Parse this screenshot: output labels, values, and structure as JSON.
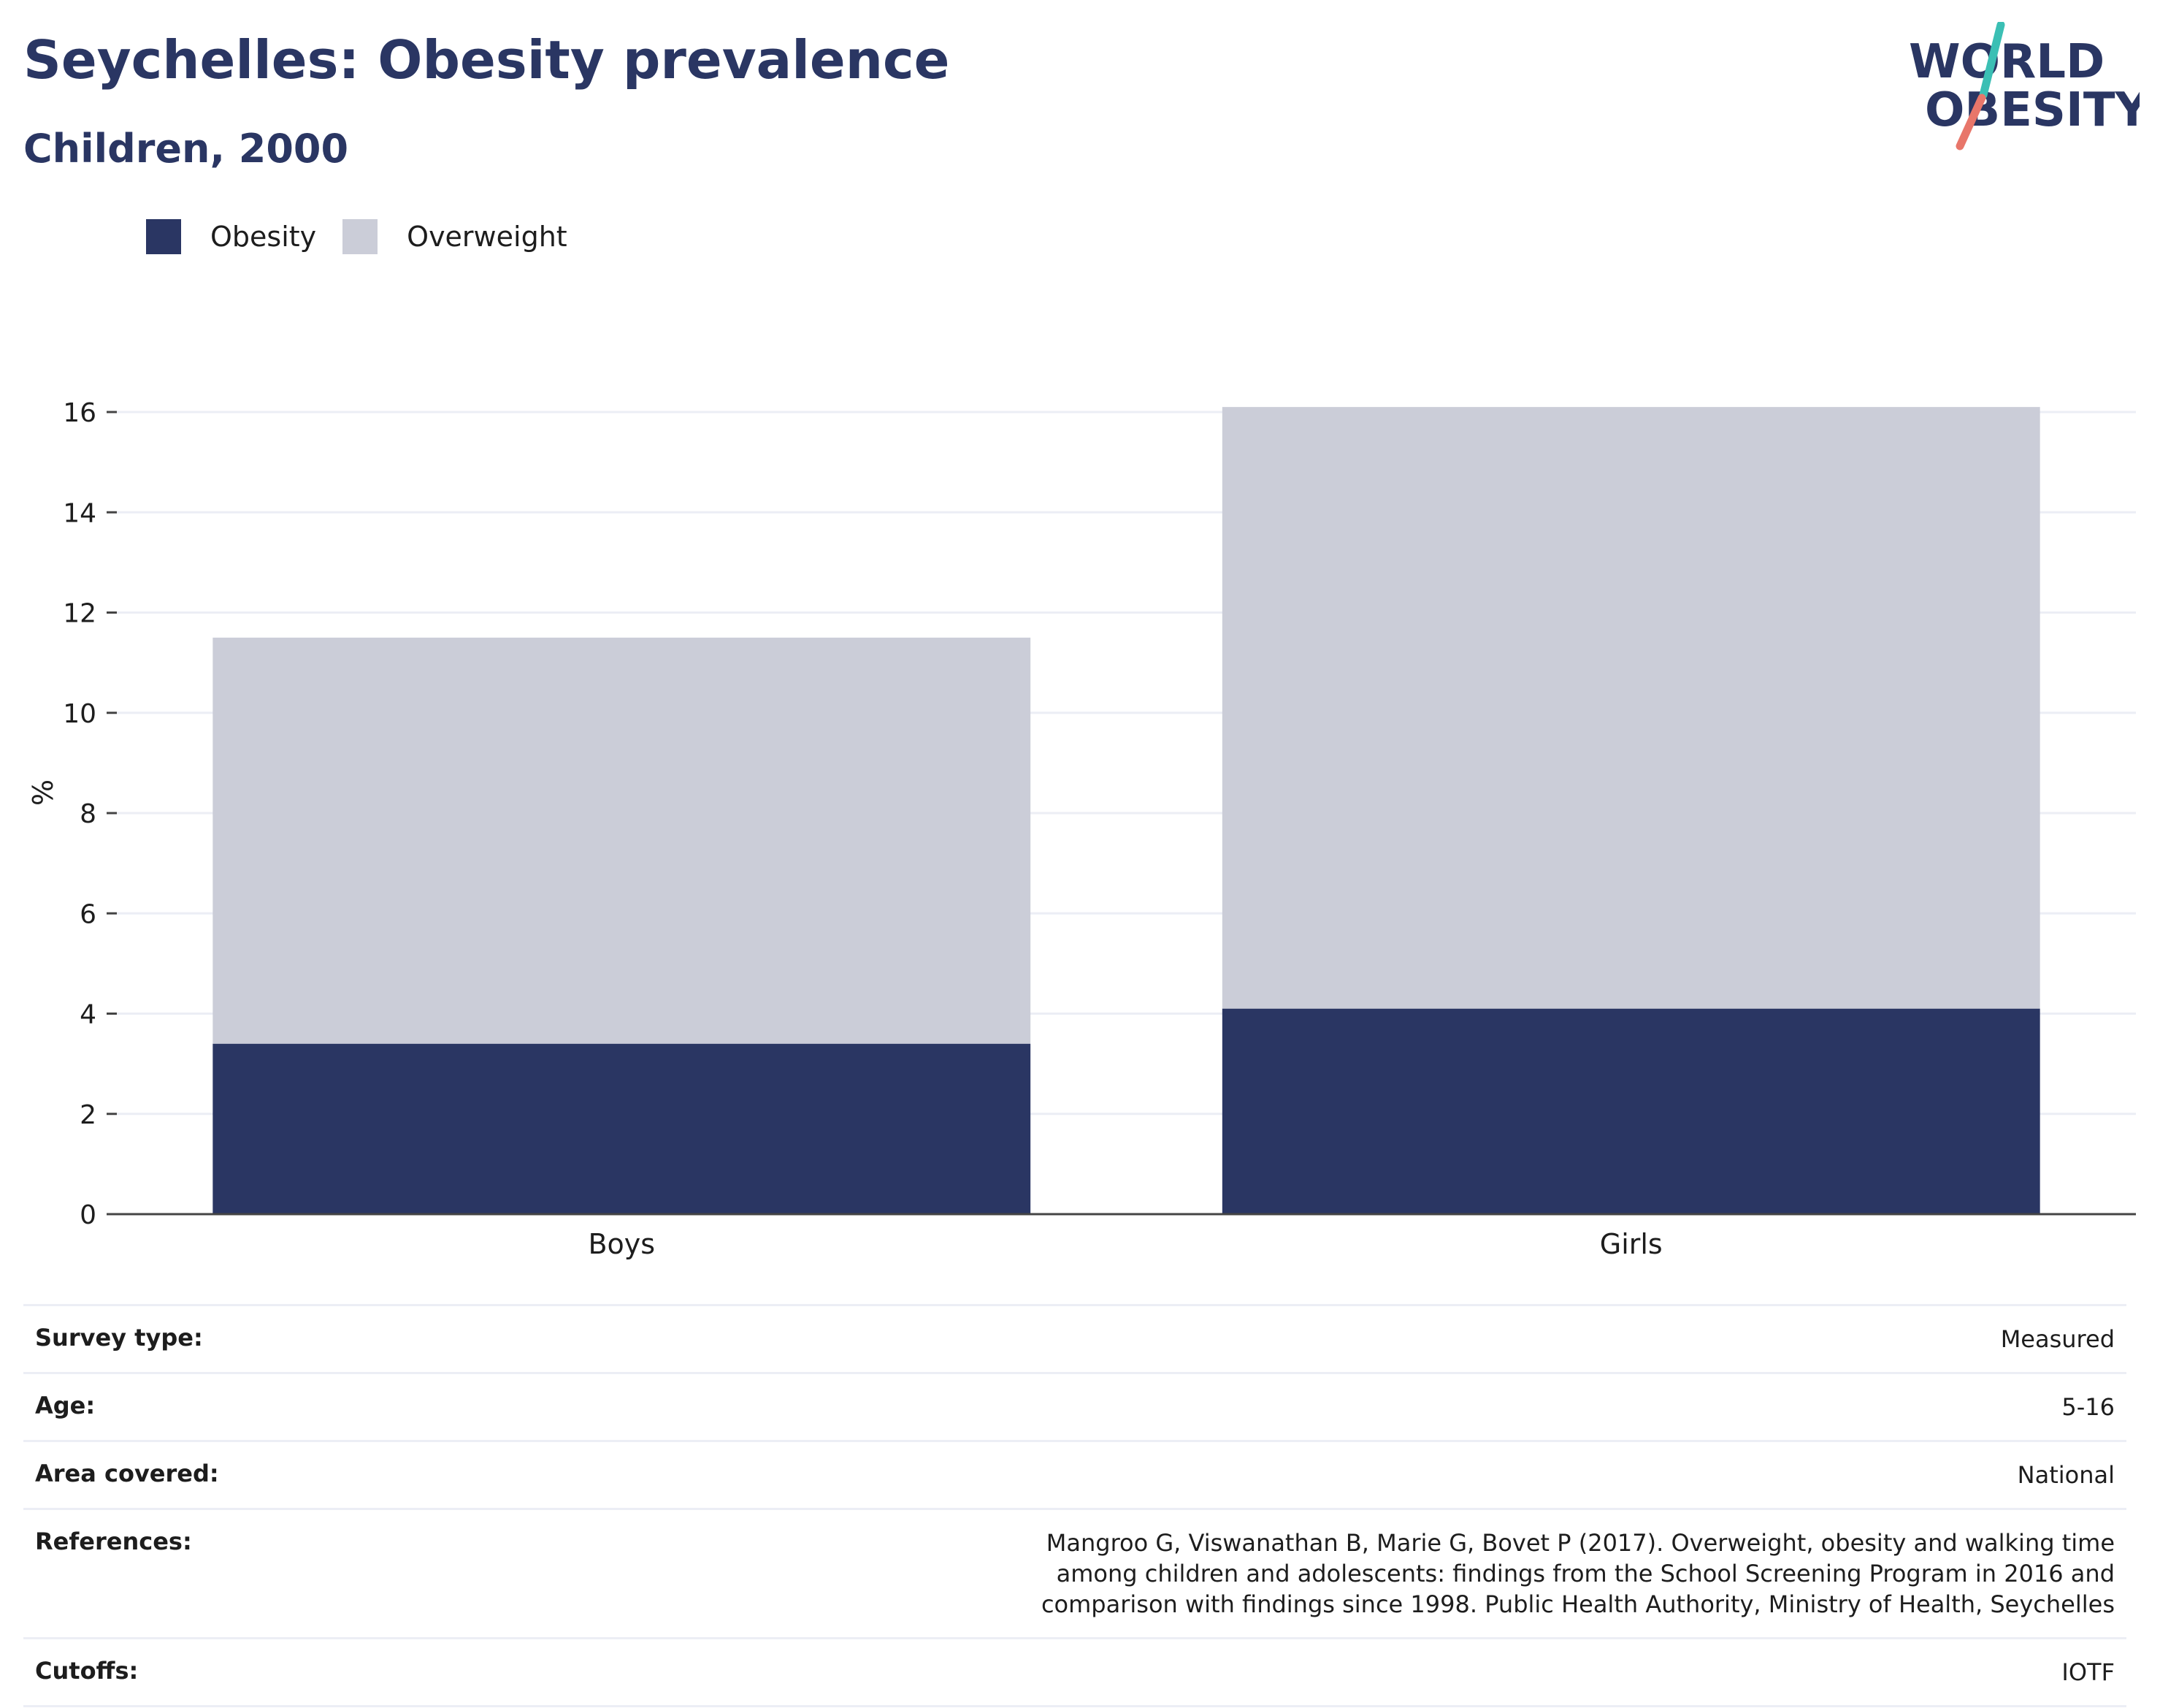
{
  "header": {
    "title": "Seychelles: Obesity prevalence",
    "subtitle": "Children, 2000"
  },
  "logo": {
    "line1": "WORLD",
    "line2": "OBESITY",
    "accent_teal": "#3bbfb4",
    "accent_coral": "#e8766a",
    "text_color": "#2a3663"
  },
  "legend": [
    {
      "label": "Obesity",
      "color": "#2a3663"
    },
    {
      "label": "Overweight",
      "color": "#cbcdd8"
    }
  ],
  "chart_data": {
    "type": "bar",
    "stacked": true,
    "categories": [
      "Boys",
      "Girls"
    ],
    "series": [
      {
        "name": "Obesity",
        "color": "#2a3663",
        "values": [
          3.4,
          4.1
        ]
      },
      {
        "name": "Overweight",
        "color": "#cbcdd8",
        "values": [
          8.1,
          12.0
        ]
      }
    ],
    "ylabel": "%",
    "ylim": [
      0,
      16
    ],
    "yticks": [
      "0",
      "2",
      "4",
      "6",
      "8",
      "10",
      "12",
      "14",
      "16"
    ],
    "grid": true
  },
  "info": [
    {
      "key": "Survey type:",
      "value": "Measured"
    },
    {
      "key": "Age:",
      "value": "5-16"
    },
    {
      "key": "Area covered:",
      "value": "National"
    },
    {
      "key": "References:",
      "value": "Mangroo G, Viswanathan B, Marie G, Bovet P (2017). Overweight, obesity and walking time among children and adolescents: findings from the School Screening Program in 2016 and comparison with findings since 1998. Public Health Authority, Ministry of Health, Seychelles"
    },
    {
      "key": "Cutoffs:",
      "value": "IOTF"
    }
  ]
}
